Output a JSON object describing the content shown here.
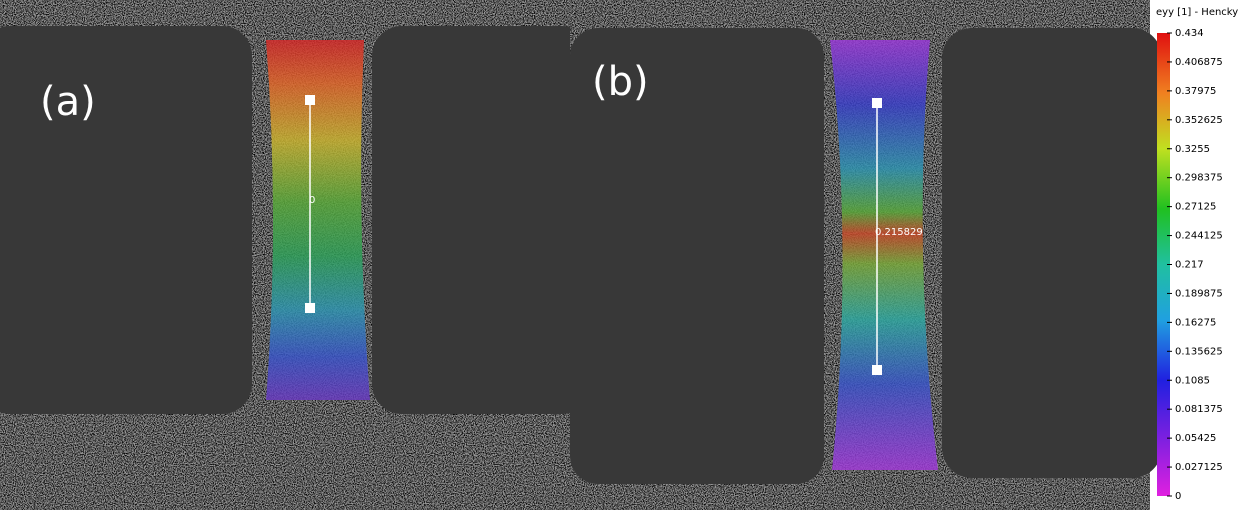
{
  "panels": [
    {
      "label": "(a)",
      "gauge_value": 0
    },
    {
      "label": "(b)",
      "gauge_value": 0.215829
    }
  ],
  "colorbar": {
    "title": "eyy [1] - Hencky",
    "lim": [
      0,
      0.434
    ],
    "ticks": [
      0.434,
      0.406875,
      0.37975,
      0.352625,
      0.3255,
      0.298375,
      0.27125,
      0.244125,
      0.217,
      0.189875,
      0.16275,
      0.135625,
      0.1085,
      0.081375,
      0.05425,
      0.027125,
      0
    ]
  }
}
